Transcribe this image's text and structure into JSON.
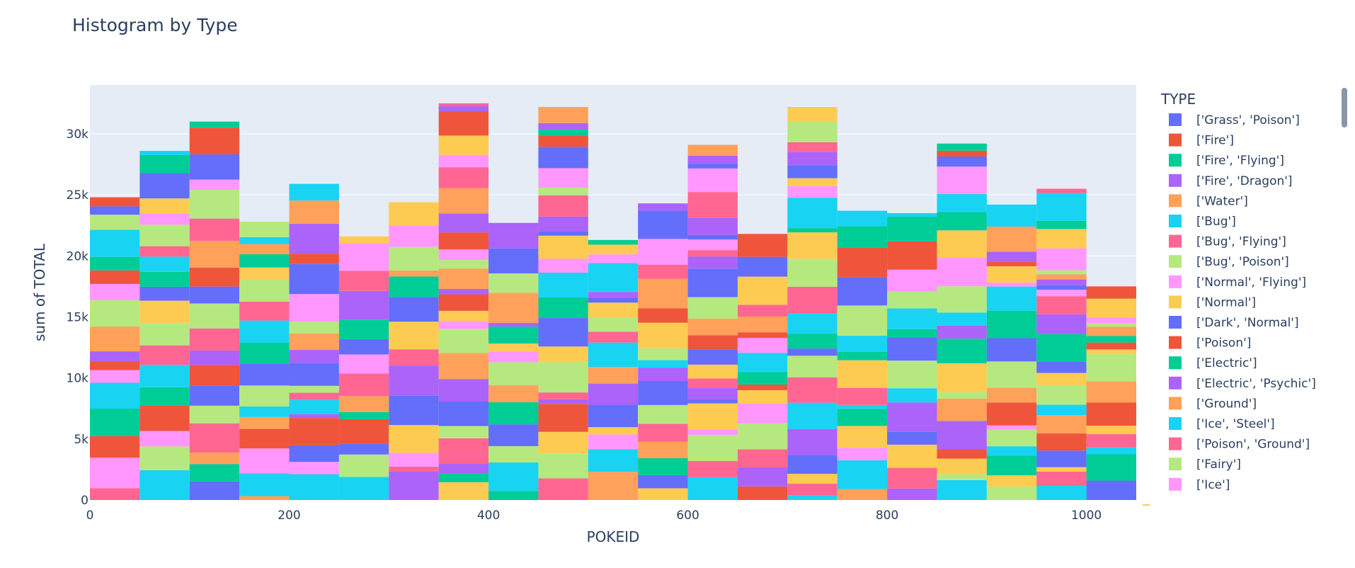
{
  "chart_data": {
    "type": "bar",
    "mode": "stacked histogram",
    "title": "Histogram by Type",
    "xlabel": "POKEID",
    "ylabel": "sum of TOTAL",
    "xlim": [
      0,
      1050
    ],
    "ylim": [
      0,
      34000
    ],
    "bin_width": 50,
    "x_ticks": [
      0,
      200,
      400,
      600,
      800,
      1000
    ],
    "x_tick_labels": [
      "0",
      "200",
      "400",
      "600",
      "800",
      "1000"
    ],
    "y_ticks": [
      0,
      5000,
      10000,
      15000,
      20000,
      25000,
      30000
    ],
    "y_tick_labels": [
      "0",
      "5k",
      "10k",
      "15k",
      "20k",
      "25k",
      "30k"
    ],
    "bin_totals": [
      24800,
      28600,
      31000,
      22800,
      25900,
      21600,
      24400,
      32500,
      22700,
      32200,
      21300,
      24300,
      29100,
      21800,
      32200,
      23700,
      23500,
      29200,
      24200,
      25500,
      17500
    ],
    "legend": {
      "title": "TYPE",
      "entries": [
        {
          "name": "['Grass', 'Poison']",
          "color": "#636efa"
        },
        {
          "name": "['Fire']",
          "color": "#EF553B"
        },
        {
          "name": "['Fire', 'Flying']",
          "color": "#00cc96"
        },
        {
          "name": "['Fire', 'Dragon']",
          "color": "#ab63fa"
        },
        {
          "name": "['Water']",
          "color": "#FFA15A"
        },
        {
          "name": "['Bug']",
          "color": "#19d3f3"
        },
        {
          "name": "['Bug', 'Flying']",
          "color": "#FF6692"
        },
        {
          "name": "['Bug', 'Poison']",
          "color": "#B6E880"
        },
        {
          "name": "['Normal', 'Flying']",
          "color": "#FF97FF"
        },
        {
          "name": "['Normal']",
          "color": "#FECB52"
        },
        {
          "name": "['Dark', 'Normal']",
          "color": "#636efa"
        },
        {
          "name": "['Poison']",
          "color": "#EF553B"
        },
        {
          "name": "['Electric']",
          "color": "#00cc96"
        },
        {
          "name": "['Electric', 'Psychic']",
          "color": "#ab63fa"
        },
        {
          "name": "['Ground']",
          "color": "#FFA15A"
        },
        {
          "name": "['Ice', 'Steel']",
          "color": "#19d3f3"
        },
        {
          "name": "['Poison', 'Ground']",
          "color": "#FF6692"
        },
        {
          "name": "['Fairy']",
          "color": "#B6E880"
        },
        {
          "name": "['Ice']",
          "color": "#FF97FF"
        }
      ]
    },
    "palette": [
      "#636efa",
      "#EF553B",
      "#00cc96",
      "#ab63fa",
      "#FFA15A",
      "#19d3f3",
      "#FF6692",
      "#B6E880",
      "#FF97FF",
      "#FECB52"
    ],
    "plot_background": "#E5ECF6",
    "grid": true
  }
}
